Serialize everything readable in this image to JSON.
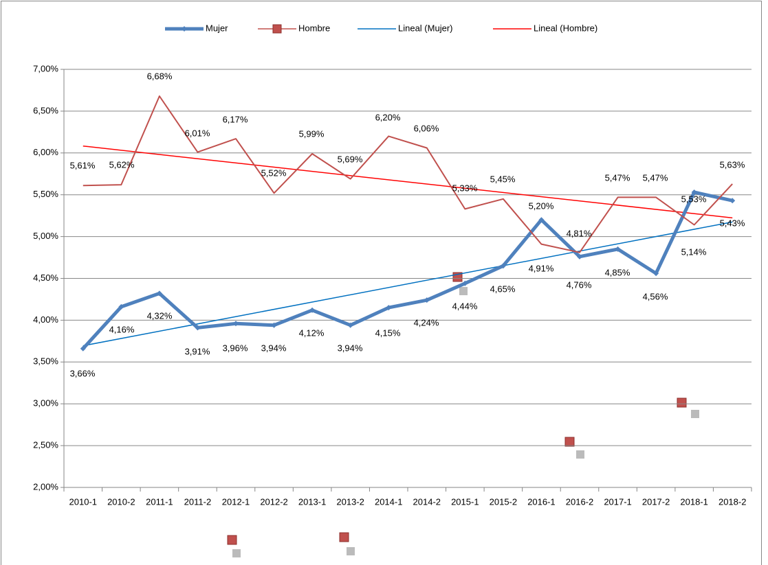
{
  "chart_data": {
    "type": "line",
    "categories": [
      "2010-1",
      "2010-2",
      "2011-1",
      "2011-2",
      "2012-1",
      "2012-2",
      "2013-1",
      "2013-2",
      "2014-1",
      "2014-2",
      "2015-1",
      "2015-2",
      "2016-1",
      "2016-2",
      "2017-1",
      "2017-2",
      "2018-1",
      "2018-2"
    ],
    "series": [
      {
        "name": "Mujer",
        "color": "#4f81bd",
        "marker": "diamond",
        "values": [
          3.66,
          4.16,
          4.32,
          3.91,
          3.96,
          3.94,
          4.12,
          3.94,
          4.15,
          4.24,
          4.44,
          4.65,
          5.2,
          4.76,
          4.85,
          4.56,
          5.53,
          5.43
        ],
        "value_labels": [
          "3,66%",
          "4,16%",
          "4,32%",
          "3,91%",
          "3,96%",
          "3,94%",
          "4,12%",
          "3,94%",
          "4,15%",
          "4,24%",
          "4,44%",
          "4,65%",
          "5,20%",
          "4,76%",
          "4,85%",
          "4,56%",
          "5,53%",
          "5,43%"
        ],
        "trendline": {
          "name": "Lineal (Mujer)",
          "color": "#0070c0"
        }
      },
      {
        "name": "Hombre",
        "color": "#c0504d",
        "marker": "square",
        "values": [
          5.61,
          5.62,
          6.68,
          6.01,
          6.17,
          5.52,
          5.99,
          5.69,
          6.2,
          6.06,
          5.33,
          5.45,
          4.91,
          4.81,
          5.47,
          5.47,
          5.14,
          5.63
        ],
        "value_labels": [
          "5,61%",
          "5,62%",
          "6,68%",
          "6,01%",
          "6,17%",
          "5,52%",
          "5,99%",
          "5,69%",
          "6,20%",
          "6,06%",
          "5,33%",
          "5,45%",
          "4,91%",
          "4,81%",
          "5,47%",
          "5,47%",
          "5,14%",
          "5,63%"
        ],
        "trendline": {
          "name": "Lineal (Hombre)",
          "color": "#ff0000"
        }
      }
    ],
    "ylim": [
      2,
      7
    ],
    "yticks": [
      {
        "value": 2,
        "label": "2,00%"
      },
      {
        "value": 2.5,
        "label": "2,50%"
      },
      {
        "value": 3,
        "label": "3,00%"
      },
      {
        "value": 3.5,
        "label": "3,50%"
      },
      {
        "value": 4,
        "label": "4,00%"
      },
      {
        "value": 4.5,
        "label": "4,50%"
      },
      {
        "value": 5,
        "label": "5,00%"
      },
      {
        "value": 5.5,
        "label": "5,50%"
      },
      {
        "value": 6,
        "label": "6,00%"
      },
      {
        "value": 6.5,
        "label": "6,50%"
      },
      {
        "value": 7,
        "label": "7,00%"
      }
    ],
    "grid": true,
    "legend": "top"
  }
}
